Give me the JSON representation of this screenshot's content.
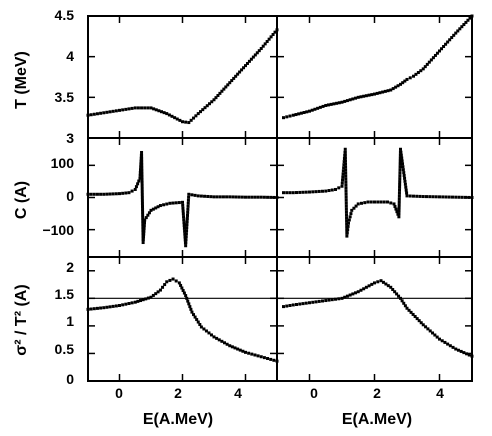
{
  "chart_data": {
    "type": "scatter",
    "xlabel": "E(A.MeV)",
    "xlim": [
      -1.0,
      5.0
    ],
    "x_ticks": [
      "0",
      "2",
      "4"
    ],
    "x_tick_values": [
      0,
      2,
      4
    ],
    "grid": false,
    "rows": [
      {
        "ylabel": "T (MeV)",
        "ylim": [
          3.0,
          4.5
        ],
        "y_ticks": [
          "3",
          "3.5",
          "4",
          "4.5"
        ],
        "y_tick_values": [
          3.0,
          3.5,
          4.0,
          4.5
        ]
      },
      {
        "ylabel": "C (A)",
        "ylim": [
          -185,
          185
        ],
        "y_ticks": [
          "100",
          "0",
          "−100"
        ],
        "y_tick_values": [
          100,
          0,
          -100
        ]
      },
      {
        "ylabel": "σ² / T² (A)",
        "ylim": [
          0.0,
          2.25
        ],
        "y_ticks": [
          "0",
          "0.5",
          "1",
          "1.5",
          "2"
        ],
        "y_tick_values": [
          0.0,
          0.5,
          1.0,
          1.5,
          2.0
        ],
        "reference_line": 1.5
      }
    ],
    "panels": [
      {
        "row": 0,
        "col": 0,
        "x": [
          -1.0,
          -0.5,
          0.0,
          0.5,
          1.0,
          1.5,
          2.0,
          2.2,
          2.5,
          3.0,
          3.5,
          4.0,
          4.5,
          5.0
        ],
        "y": [
          3.28,
          3.31,
          3.34,
          3.37,
          3.37,
          3.3,
          3.2,
          3.19,
          3.3,
          3.47,
          3.68,
          3.89,
          4.1,
          4.33
        ]
      },
      {
        "row": 0,
        "col": 1,
        "x": [
          -0.8,
          -0.5,
          0.0,
          0.5,
          1.0,
          1.5,
          2.0,
          2.5,
          2.8,
          3.0,
          3.2,
          3.5,
          4.0,
          4.5,
          5.0
        ],
        "y": [
          3.25,
          3.28,
          3.33,
          3.4,
          3.44,
          3.5,
          3.54,
          3.59,
          3.66,
          3.72,
          3.76,
          3.85,
          4.07,
          4.29,
          4.5
        ]
      },
      {
        "row": 1,
        "col": 0,
        "x": [
          -1.0,
          -0.5,
          0.0,
          0.3,
          0.5,
          0.65,
          0.7,
          0.75,
          0.8,
          1.0,
          1.3,
          1.6,
          2.0,
          2.1,
          2.2,
          2.5,
          3.0,
          3.5,
          4.0,
          4.5,
          5.0
        ],
        "y": [
          10,
          10,
          12,
          15,
          25,
          60,
          140,
          -140,
          -70,
          -40,
          -25,
          -18,
          -15,
          -150,
          10,
          5,
          2,
          2,
          1,
          1,
          0
        ]
      },
      {
        "row": 1,
        "col": 1,
        "x": [
          -0.8,
          -0.5,
          0.0,
          0.5,
          0.8,
          1.0,
          1.1,
          1.15,
          1.2,
          1.3,
          1.5,
          1.8,
          2.0,
          2.2,
          2.4,
          2.6,
          2.75,
          2.8,
          3.0,
          3.5,
          4.0,
          4.5,
          5.0
        ],
        "y": [
          15,
          15,
          17,
          20,
          25,
          35,
          150,
          -120,
          -80,
          -40,
          -20,
          -14,
          -14,
          -14,
          -14,
          -20,
          -60,
          150,
          5,
          3,
          2,
          1,
          0
        ]
      },
      {
        "row": 2,
        "col": 0,
        "x": [
          -1.0,
          -0.5,
          0.0,
          0.5,
          1.0,
          1.3,
          1.5,
          1.7,
          1.9,
          2.1,
          2.3,
          2.6,
          3.0,
          3.5,
          4.0,
          4.5,
          5.0
        ],
        "y": [
          1.3,
          1.33,
          1.37,
          1.43,
          1.52,
          1.65,
          1.8,
          1.85,
          1.78,
          1.55,
          1.25,
          0.98,
          0.8,
          0.64,
          0.52,
          0.44,
          0.36
        ]
      },
      {
        "row": 2,
        "col": 1,
        "x": [
          -0.8,
          -0.5,
          0.0,
          0.5,
          1.0,
          1.5,
          2.0,
          2.2,
          2.5,
          2.8,
          3.0,
          3.5,
          4.0,
          4.5,
          5.0
        ],
        "y": [
          1.35,
          1.38,
          1.42,
          1.46,
          1.5,
          1.62,
          1.78,
          1.82,
          1.7,
          1.5,
          1.32,
          1.02,
          0.76,
          0.58,
          0.45
        ]
      }
    ]
  }
}
